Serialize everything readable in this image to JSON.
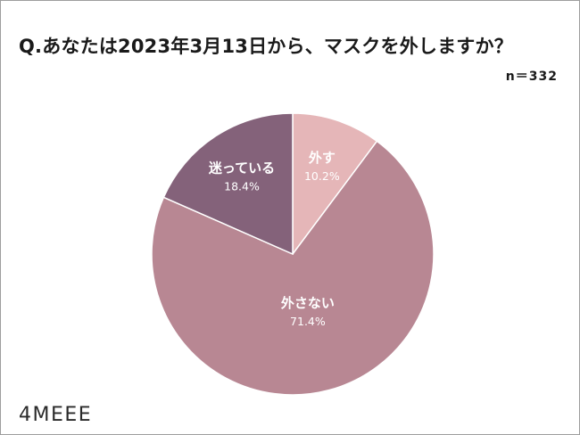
{
  "chart_data": {
    "type": "pie",
    "title": "Q.あなたは2023年3月13日から、マスクを外しますか？",
    "sample_size": "n＝332",
    "slices": [
      {
        "label": "外す",
        "value": 10.2,
        "value_label": "10.2%",
        "color": "#e5b6b8"
      },
      {
        "label": "外さない",
        "value": 71.4,
        "value_label": "71.4%",
        "color": "#b88793"
      },
      {
        "label": "迷っている",
        "value": 18.4,
        "value_label": "18.4%",
        "color": "#84627a"
      }
    ]
  },
  "brand": {
    "logo_text": "4MEEE"
  }
}
